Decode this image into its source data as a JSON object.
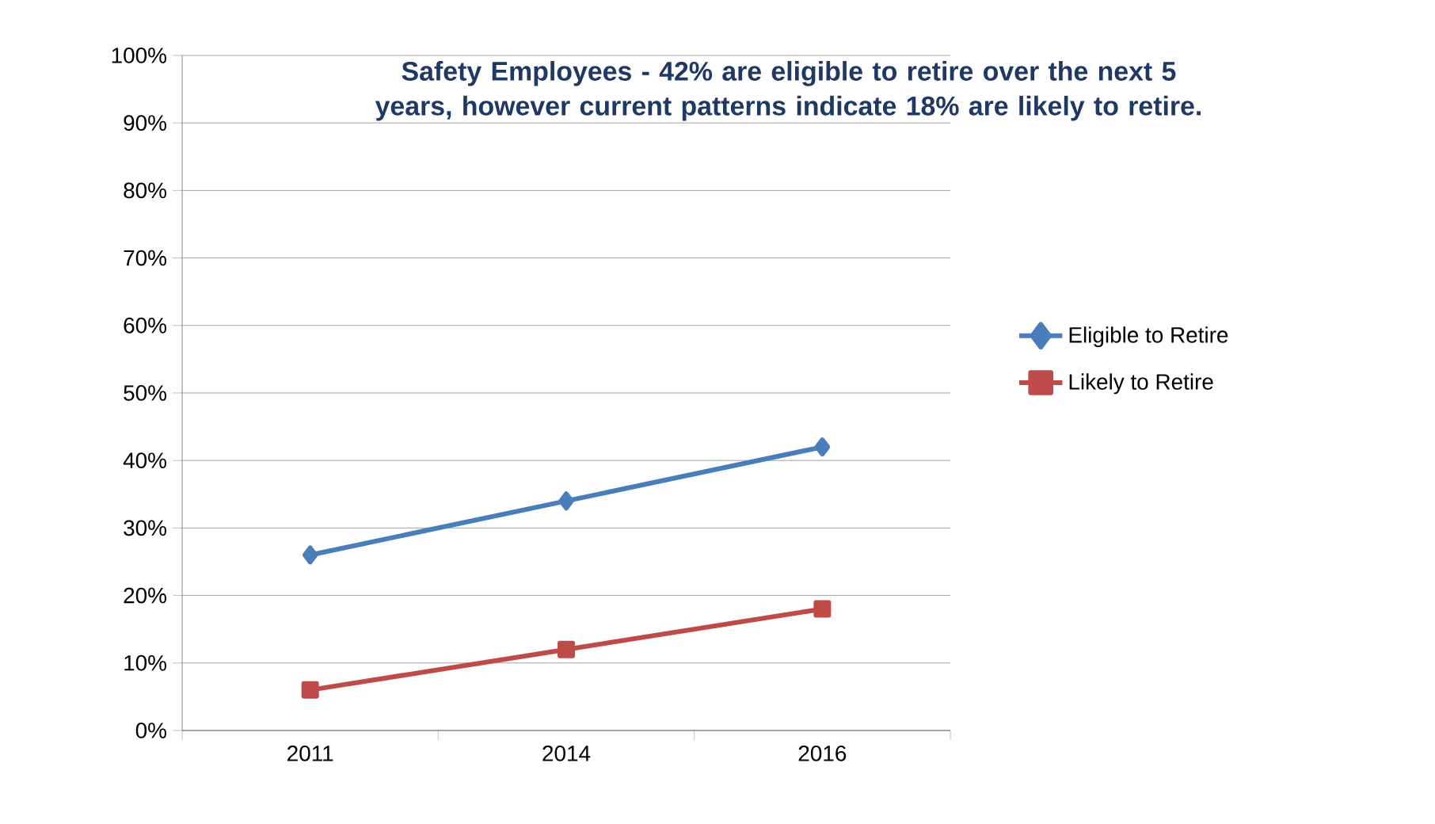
{
  "chart_data": {
    "type": "line",
    "title": "Safety Employees - 42% are eligible to retire over the next 5 years, however current patterns indicate 18% are likely to retire.",
    "categories": [
      "2011",
      "2014",
      "2016"
    ],
    "series": [
      {
        "name": "Eligible to Retire",
        "color": "#4a7ebb",
        "marker": "diamond",
        "values": [
          26,
          34,
          42
        ]
      },
      {
        "name": "Likely to Retire",
        "color": "#be4b48",
        "marker": "square",
        "values": [
          6,
          12,
          18
        ]
      }
    ],
    "ylim": [
      0,
      100
    ],
    "yticks": [
      {
        "value": 0,
        "label": "0%"
      },
      {
        "value": 10,
        "label": "10%"
      },
      {
        "value": 20,
        "label": "20%"
      },
      {
        "value": 30,
        "label": "30%"
      },
      {
        "value": 40,
        "label": "40%"
      },
      {
        "value": 50,
        "label": "50%"
      },
      {
        "value": 60,
        "label": "60%"
      },
      {
        "value": 70,
        "label": "70%"
      },
      {
        "value": 80,
        "label": "80%"
      },
      {
        "value": 90,
        "label": "90%"
      },
      {
        "value": 100,
        "label": "100%"
      }
    ],
    "grid": "y",
    "legend": "right",
    "line_style": "solid"
  }
}
